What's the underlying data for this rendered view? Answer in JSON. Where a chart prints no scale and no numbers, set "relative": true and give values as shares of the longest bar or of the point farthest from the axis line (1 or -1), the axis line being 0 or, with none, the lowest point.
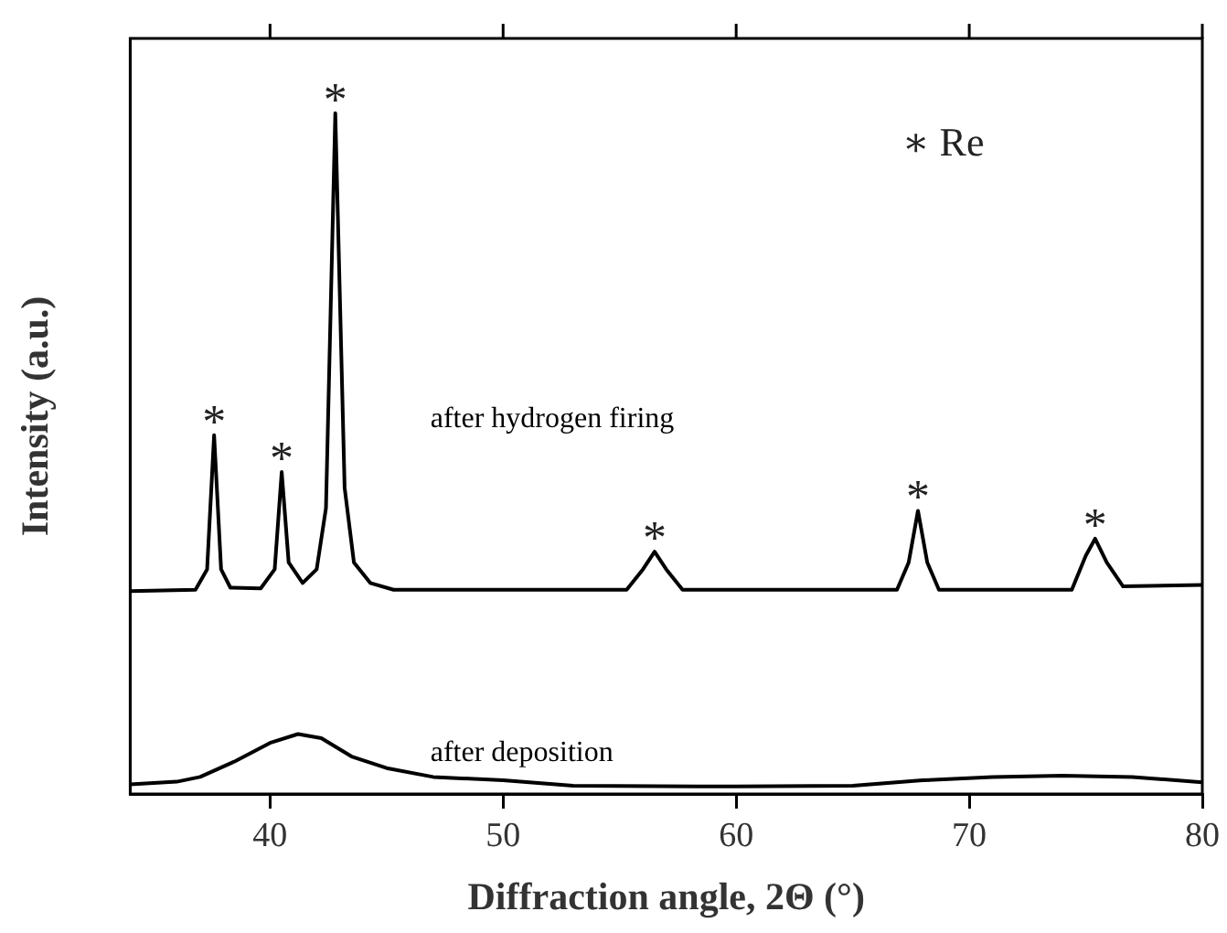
{
  "chart_data": {
    "type": "line",
    "relative": true,
    "xlabel": "Diffraction angle, 2Θ (°)",
    "ylabel": "Intensity (a.u.)",
    "xlim": [
      34,
      80
    ],
    "xticks": [
      40,
      50,
      60,
      70,
      80
    ],
    "legend": false,
    "grid": false,
    "marker": "none",
    "line_style": "solid",
    "series": [
      {
        "name": "after hydrogen firing",
        "color": "#000000",
        "x": [
          34,
          36.8,
          37.3,
          37.6,
          37.9,
          38.3,
          39.6,
          40.2,
          40.5,
          40.8,
          41.4,
          42.0,
          42.4,
          42.8,
          43.2,
          43.6,
          44.3,
          45.3,
          55.3,
          56.0,
          56.5,
          57.0,
          57.7,
          66.9,
          67.4,
          67.8,
          68.2,
          68.7,
          74.4,
          75.0,
          75.4,
          75.9,
          76.6,
          80
        ],
        "values": [
          0.298,
          0.3,
          0.33,
          0.527,
          0.33,
          0.303,
          0.302,
          0.33,
          0.473,
          0.34,
          0.31,
          0.33,
          0.42,
          1.0,
          0.45,
          0.34,
          0.31,
          0.3,
          0.3,
          0.33,
          0.356,
          0.33,
          0.3,
          0.3,
          0.34,
          0.416,
          0.34,
          0.3,
          0.3,
          0.35,
          0.375,
          0.34,
          0.305,
          0.307
        ]
      },
      {
        "name": "after deposition",
        "color": "#000000",
        "x": [
          34,
          36,
          37,
          38.5,
          40,
          41.2,
          42.2,
          43.5,
          45,
          47,
          50,
          53,
          60,
          65,
          68,
          71,
          74,
          77,
          80
        ],
        "values": [
          0.014,
          0.018,
          0.025,
          0.048,
          0.075,
          0.088,
          0.082,
          0.055,
          0.038,
          0.025,
          0.02,
          0.012,
          0.011,
          0.012,
          0.02,
          0.025,
          0.027,
          0.025,
          0.017
        ]
      }
    ],
    "annotations": [
      {
        "text": "*",
        "x": 37.6,
        "y": 0.527
      },
      {
        "text": "*",
        "x": 40.5,
        "y": 0.473
      },
      {
        "text": "*",
        "x": 42.8,
        "y": 1.0
      },
      {
        "text": "*",
        "x": 56.5,
        "y": 0.356
      },
      {
        "text": "*",
        "x": 67.8,
        "y": 0.416
      },
      {
        "text": "*",
        "x": 75.4,
        "y": 0.375
      },
      "∗ Re"
    ]
  }
}
